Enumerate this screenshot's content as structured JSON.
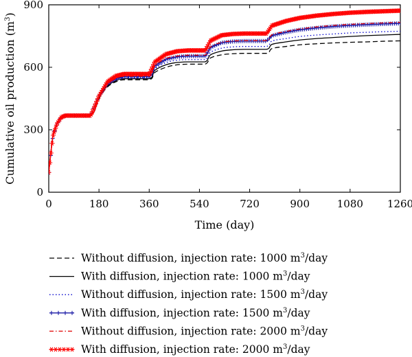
{
  "chart_data": {
    "type": "line",
    "title": "",
    "xlabel": "Time (day)",
    "ylabel": "Cumulative oil production (m",
    "ylabel_sup": "3",
    "ylabel_suffix": ")",
    "xlim": [
      0,
      1260
    ],
    "ylim": [
      0,
      900
    ],
    "xticks": [
      "0",
      "180",
      "360",
      "540",
      "720",
      "900",
      "1080",
      "1260"
    ],
    "yticks": [
      "0",
      "300",
      "600",
      "900"
    ],
    "xtick_values": [
      0,
      180,
      360,
      540,
      720,
      900,
      1080,
      1260
    ],
    "ytick_values": [
      0,
      300,
      600,
      900
    ],
    "legend_position": "below",
    "series": [
      {
        "legend_main": "Without diffusion, injection rate: 1000 m",
        "legend_sup": "3",
        "legend_suffix": "/day",
        "color": "#000000",
        "style": "dashed",
        "marker": "none",
        "x": [
          0,
          15,
          30,
          45,
          60,
          150,
          180,
          210,
          240,
          270,
          360,
          380,
          420,
          460,
          500,
          560,
          580,
          620,
          660,
          700,
          780,
          800,
          850,
          900,
          960,
          1020,
          1080,
          1140,
          1200,
          1260
        ],
        "y": [
          95,
          270,
          330,
          360,
          368,
          368,
          450,
          505,
          530,
          540,
          540,
          575,
          600,
          612,
          615,
          615,
          645,
          660,
          665,
          667,
          667,
          690,
          700,
          708,
          713,
          717,
          720,
          722,
          725,
          727
        ]
      },
      {
        "legend_main": "With diffusion, injection rate: 1000 m",
        "legend_sup": "3",
        "legend_suffix": "/day",
        "color": "#000000",
        "style": "solid",
        "marker": "none",
        "x": [
          0,
          15,
          30,
          45,
          60,
          150,
          180,
          210,
          240,
          270,
          360,
          380,
          420,
          460,
          500,
          560,
          580,
          620,
          660,
          700,
          780,
          800,
          850,
          900,
          960,
          1020,
          1080,
          1140,
          1200,
          1260
        ],
        "y": [
          95,
          270,
          330,
          360,
          368,
          368,
          455,
          510,
          535,
          545,
          545,
          585,
          612,
          623,
          626,
          626,
          660,
          678,
          684,
          686,
          686,
          710,
          722,
          731,
          738,
          743,
          748,
          752,
          755,
          758
        ]
      },
      {
        "legend_main": "Without diffusion, injection rate: 1500 m",
        "legend_sup": "3",
        "legend_suffix": "/day",
        "color": "#0000cc",
        "style": "dotted",
        "marker": "none",
        "x": [
          0,
          15,
          30,
          45,
          60,
          150,
          180,
          210,
          240,
          270,
          360,
          380,
          420,
          460,
          500,
          560,
          580,
          620,
          660,
          700,
          780,
          800,
          850,
          900,
          960,
          1020,
          1080,
          1140,
          1200,
          1260
        ],
        "y": [
          95,
          270,
          330,
          360,
          368,
          368,
          458,
          515,
          540,
          550,
          550,
          592,
          622,
          634,
          637,
          637,
          672,
          692,
          698,
          700,
          700,
          726,
          738,
          748,
          755,
          760,
          765,
          768,
          771,
          773
        ]
      },
      {
        "legend_main": "With diffusion, injection rate: 1500 m",
        "legend_sup": "3",
        "legend_suffix": "/day",
        "color": "#1a1aa6",
        "style": "solid",
        "marker": "plus",
        "x": [
          0,
          15,
          30,
          45,
          60,
          150,
          180,
          210,
          240,
          270,
          360,
          380,
          420,
          460,
          500,
          560,
          580,
          620,
          660,
          700,
          780,
          800,
          850,
          900,
          960,
          1020,
          1080,
          1140,
          1200,
          1260
        ],
        "y": [
          95,
          270,
          330,
          360,
          368,
          368,
          460,
          520,
          545,
          555,
          555,
          605,
          638,
          650,
          654,
          654,
          695,
          718,
          724,
          726,
          726,
          752,
          768,
          780,
          789,
          796,
          801,
          805,
          808,
          811
        ]
      },
      {
        "legend_main": "Without diffusion, injection rate: 2000 m",
        "legend_sup": "3",
        "legend_suffix": "/day",
        "color": "#e00000",
        "style": "dashdot",
        "marker": "none",
        "x": [
          0,
          15,
          30,
          45,
          60,
          150,
          180,
          210,
          240,
          270,
          360,
          380,
          420,
          460,
          500,
          560,
          580,
          620,
          660,
          700,
          780,
          800,
          850,
          900,
          960,
          1020,
          1080,
          1140,
          1200,
          1260
        ],
        "y": [
          95,
          270,
          330,
          360,
          368,
          368,
          460,
          522,
          547,
          557,
          557,
          607,
          642,
          654,
          658,
          658,
          698,
          720,
          726,
          728,
          728,
          756,
          772,
          784,
          794,
          801,
          806,
          810,
          813,
          816
        ]
      },
      {
        "legend_main": "With diffusion, injection rate: 2000 m",
        "legend_sup": "3",
        "legend_suffix": "/day",
        "color": "#ff0000",
        "style": "solid",
        "marker": "star",
        "x": [
          0,
          15,
          30,
          45,
          60,
          150,
          180,
          210,
          240,
          270,
          360,
          380,
          420,
          460,
          500,
          560,
          580,
          620,
          660,
          700,
          780,
          800,
          850,
          900,
          960,
          1020,
          1080,
          1140,
          1200,
          1260
        ],
        "y": [
          95,
          270,
          330,
          360,
          368,
          368,
          462,
          530,
          558,
          568,
          568,
          625,
          663,
          677,
          681,
          681,
          728,
          754,
          760,
          762,
          762,
          800,
          822,
          837,
          848,
          856,
          862,
          866,
          869,
          872
        ]
      }
    ]
  }
}
